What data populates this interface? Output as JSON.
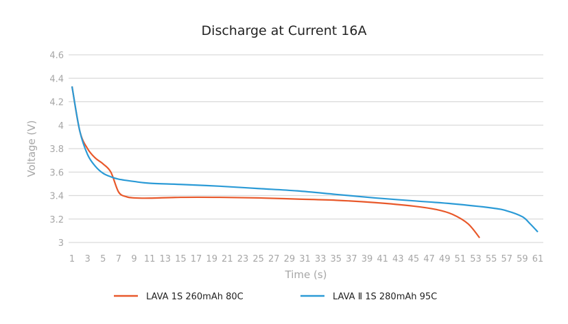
{
  "chart_data": {
    "type": "line",
    "title": "Discharge at Current 16A",
    "xlabel": "Time (s)",
    "ylabel": "Voltage (V)",
    "xlim": [
      1,
      61
    ],
    "ylim": [
      3,
      4.6
    ],
    "xticks": [
      1,
      3,
      5,
      7,
      9,
      11,
      13,
      15,
      17,
      19,
      21,
      23,
      25,
      27,
      29,
      31,
      33,
      35,
      37,
      39,
      41,
      43,
      45,
      47,
      49,
      51,
      53,
      55,
      57,
      59,
      61
    ],
    "yticks": [
      3,
      3.2,
      3.4,
      3.6,
      3.8,
      4,
      4.2,
      4.4,
      4.6
    ],
    "ytick_labels": [
      "3",
      "3.2",
      "3.4",
      "3.6",
      "3.8",
      "4",
      "4.2",
      "4.4",
      "4.6"
    ],
    "grid": true,
    "legend_position": "bottom",
    "series": [
      {
        "name": "LAVA 1S 260mAh 80C",
        "color": "#e8582a",
        "x": [
          1,
          2,
          3,
          4,
          5,
          6,
          7,
          8,
          9,
          11,
          15,
          20,
          25,
          30,
          35,
          40,
          45,
          48,
          50,
          52,
          53.5
        ],
        "y": [
          4.33,
          3.95,
          3.8,
          3.72,
          3.67,
          3.6,
          3.43,
          3.39,
          3.38,
          3.378,
          3.385,
          3.385,
          3.38,
          3.37,
          3.36,
          3.34,
          3.31,
          3.28,
          3.24,
          3.16,
          3.04
        ]
      },
      {
        "name": "LAVA Ⅱ 1S 280mAh 95C",
        "color": "#2a9ad6",
        "x": [
          1,
          2,
          3,
          4,
          5,
          6,
          7,
          9,
          11,
          15,
          20,
          25,
          30,
          35,
          40,
          45,
          50,
          55,
          57,
          59,
          60,
          61
        ],
        "y": [
          4.33,
          3.95,
          3.75,
          3.65,
          3.59,
          3.56,
          3.54,
          3.52,
          3.505,
          3.495,
          3.48,
          3.46,
          3.44,
          3.41,
          3.38,
          3.355,
          3.33,
          3.295,
          3.27,
          3.22,
          3.16,
          3.09
        ]
      }
    ]
  }
}
